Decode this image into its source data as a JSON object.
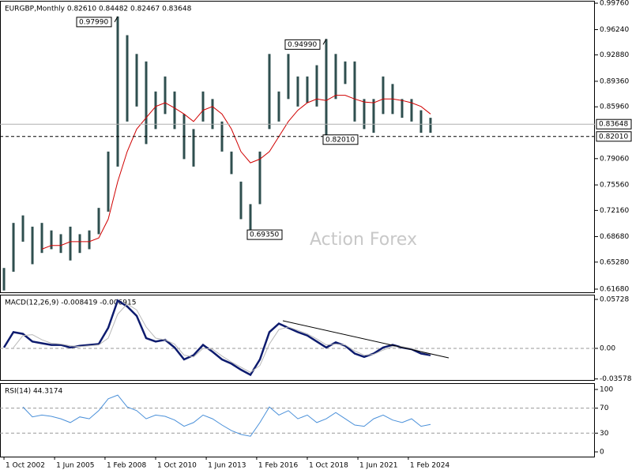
{
  "chart_data": [
    {
      "type": "hlbar",
      "title": "EURGBP,Monthly 0.82610 0.84482 0.82467 0.83648",
      "watermark": "Action Forex",
      "color": "#2f4f4f",
      "xlim": [
        2002.54,
        2033.92
      ],
      "x": [
        2002.75,
        2003.25,
        2003.75,
        2004.25,
        2004.75,
        2005.25,
        2005.75,
        2006.25,
        2006.75,
        2007.25,
        2007.75,
        2008.25,
        2008.75,
        2009.25,
        2009.75,
        2010.25,
        2010.75,
        2011.25,
        2011.75,
        2012.25,
        2012.75,
        2013.25,
        2013.75,
        2014.25,
        2014.75,
        2015.25,
        2015.75,
        2016.25,
        2016.75,
        2017.25,
        2017.75,
        2018.25,
        2018.75,
        2019.25,
        2019.75,
        2020.25,
        2020.75,
        2021.25,
        2021.75,
        2022.25,
        2022.75,
        2023.25,
        2023.75,
        2024.25,
        2024.75,
        2025.25
      ],
      "high": [
        0.645,
        0.705,
        0.715,
        0.7,
        0.705,
        0.695,
        0.69,
        0.7,
        0.69,
        0.695,
        0.725,
        0.8,
        0.9799,
        0.955,
        0.93,
        0.92,
        0.88,
        0.9,
        0.88,
        0.85,
        0.83,
        0.88,
        0.87,
        0.84,
        0.8,
        0.76,
        0.73,
        0.8,
        0.93,
        0.88,
        0.93,
        0.9,
        0.9,
        0.915,
        0.9499,
        0.93,
        0.92,
        0.92,
        0.87,
        0.87,
        0.9,
        0.89,
        0.87,
        0.87,
        0.855,
        0.845
      ],
      "low": [
        0.615,
        0.64,
        0.68,
        0.65,
        0.665,
        0.67,
        0.665,
        0.655,
        0.665,
        0.67,
        0.69,
        0.72,
        0.78,
        0.84,
        0.86,
        0.81,
        0.83,
        0.85,
        0.83,
        0.79,
        0.78,
        0.84,
        0.83,
        0.8,
        0.77,
        0.71,
        0.6935,
        0.73,
        0.83,
        0.84,
        0.87,
        0.86,
        0.865,
        0.86,
        0.8201,
        0.87,
        0.89,
        0.84,
        0.83,
        0.825,
        0.85,
        0.85,
        0.845,
        0.84,
        0.825,
        0.825
      ],
      "ma": {
        "color": "#d00000",
        "values": [
          null,
          null,
          null,
          null,
          0.67,
          0.675,
          0.675,
          0.68,
          0.68,
          0.68,
          0.685,
          0.71,
          0.76,
          0.8,
          0.83,
          0.845,
          0.86,
          0.865,
          0.858,
          0.85,
          0.84,
          0.855,
          0.86,
          0.85,
          0.83,
          0.8,
          0.785,
          0.79,
          0.8,
          0.82,
          0.84,
          0.855,
          0.865,
          0.87,
          0.868,
          0.875,
          0.875,
          0.87,
          0.866,
          0.865,
          0.87,
          0.87,
          0.868,
          0.865,
          0.86,
          0.85
        ]
      },
      "ylim": [
        0.6126,
        1.0008
      ],
      "yticks": [
        {
          "value": 0.9976,
          "label": "0.99760"
        },
        {
          "value": 0.9624,
          "label": "0.96240"
        },
        {
          "value": 0.9288,
          "label": "0.92880"
        },
        {
          "value": 0.8936,
          "label": "0.89360"
        },
        {
          "value": 0.8596,
          "label": "0.85960"
        },
        {
          "value": 0.7906,
          "label": "0.79060"
        },
        {
          "value": 0.7556,
          "label": "0.75560"
        },
        {
          "value": 0.7216,
          "label": "0.72160"
        },
        {
          "value": 0.6868,
          "label": "0.68680"
        },
        {
          "value": 0.6528,
          "label": "0.65280"
        },
        {
          "value": 0.6168,
          "label": "0.61680"
        }
      ],
      "price_lines": [
        {
          "value": 0.83648,
          "label": "0.83648",
          "style": "solid",
          "color": "#b0b0b0"
        },
        {
          "value": 0.8201,
          "label": "0.82010",
          "style": "dashed",
          "color": "#000000"
        }
      ],
      "annotations": [
        {
          "x": 2008.75,
          "value": 0.9799,
          "label": "0.97990"
        },
        {
          "x": 2019.75,
          "value": 0.9499,
          "label": "0.94990"
        },
        {
          "x": 2015.75,
          "value": 0.6935,
          "label": "0.69350"
        },
        {
          "x": 2019.75,
          "value": 0.8201,
          "label": "0.82010"
        }
      ]
    },
    {
      "type": "line",
      "title": "MACD(12,26,9) -0.008419 -0.006915",
      "ylim": [
        -0.037,
        0.0628
      ],
      "yticks": [
        0.05728,
        {
          "value": 0,
          "label": "0.00"
        },
        -0.035783
      ],
      "levels": [
        0
      ],
      "series": [
        {
          "color": "#0d1b6e",
          "width": 2.5,
          "values": [
            0.001,
            0.019,
            0.017,
            0.008,
            0.006,
            0.004,
            0.004,
            0.001,
            0.003,
            0.004,
            0.005,
            0.024,
            0.056,
            0.049,
            0.038,
            0.012,
            0.008,
            0.01,
            0.001,
            -0.013,
            -0.008,
            0.004,
            -0.004,
            -0.013,
            -0.018,
            -0.025,
            -0.031,
            -0.013,
            0.019,
            0.029,
            0.024,
            0.019,
            0.015,
            0.008,
            0.001,
            0.007,
            0.003,
            -0.006,
            -0.01,
            -0.006,
            0.001,
            0.004,
            0.001,
            -0.001,
            -0.006,
            -0.008
          ]
        },
        {
          "color": "#b8b8b8",
          "width": 1,
          "values": [
            null,
            0.001,
            0.015,
            0.016,
            0.01,
            0.006,
            0.005,
            0.003,
            0.002,
            0.003,
            0.004,
            0.012,
            0.04,
            0.052,
            0.045,
            0.025,
            0.012,
            0.01,
            0.005,
            -0.008,
            -0.01,
            0.0,
            -0.001,
            -0.009,
            -0.016,
            -0.022,
            -0.028,
            -0.02,
            0.005,
            0.022,
            0.025,
            0.021,
            0.017,
            0.011,
            0.004,
            0.005,
            0.004,
            -0.003,
            -0.008,
            -0.007,
            -0.002,
            0.002,
            0.002,
            0.0,
            -0.004,
            -0.007
          ]
        }
      ]
    },
    {
      "type": "line",
      "title": "RSI(14) 44.3174",
      "ylim": [
        -7.6,
        110.1
      ],
      "yticks": [
        100,
        70,
        30,
        0
      ],
      "levels": [
        70,
        30
      ],
      "xticks": [
        {
          "value": 2002.75,
          "label": "1 Oct 2002"
        },
        {
          "value": 2005.42,
          "label": "1 Jun 2005"
        },
        {
          "value": 2008.08,
          "label": "1 Feb 2008"
        },
        {
          "value": 2010.75,
          "label": "1 Oct 2010"
        },
        {
          "value": 2013.42,
          "label": "1 Jun 2013"
        },
        {
          "value": 2016.08,
          "label": "1 Feb 2016"
        },
        {
          "value": 2018.75,
          "label": "1 Oct 2018"
        },
        {
          "value": 2021.42,
          "label": "1 Jun 2021"
        },
        {
          "value": 2024.08,
          "label": "1 Feb 2024"
        }
      ],
      "series": [
        {
          "color": "#4a90d9",
          "width": 1,
          "values": [
            null,
            null,
            72,
            56,
            59,
            57,
            53,
            47,
            56,
            53,
            66,
            85,
            91,
            72,
            66,
            53,
            59,
            57,
            51,
            41,
            47,
            59,
            53,
            43,
            34,
            28,
            25,
            47,
            72,
            59,
            66,
            53,
            59,
            47,
            53,
            63,
            53,
            43,
            41,
            53,
            59,
            51,
            47,
            53,
            41,
            44
          ]
        }
      ]
    }
  ]
}
